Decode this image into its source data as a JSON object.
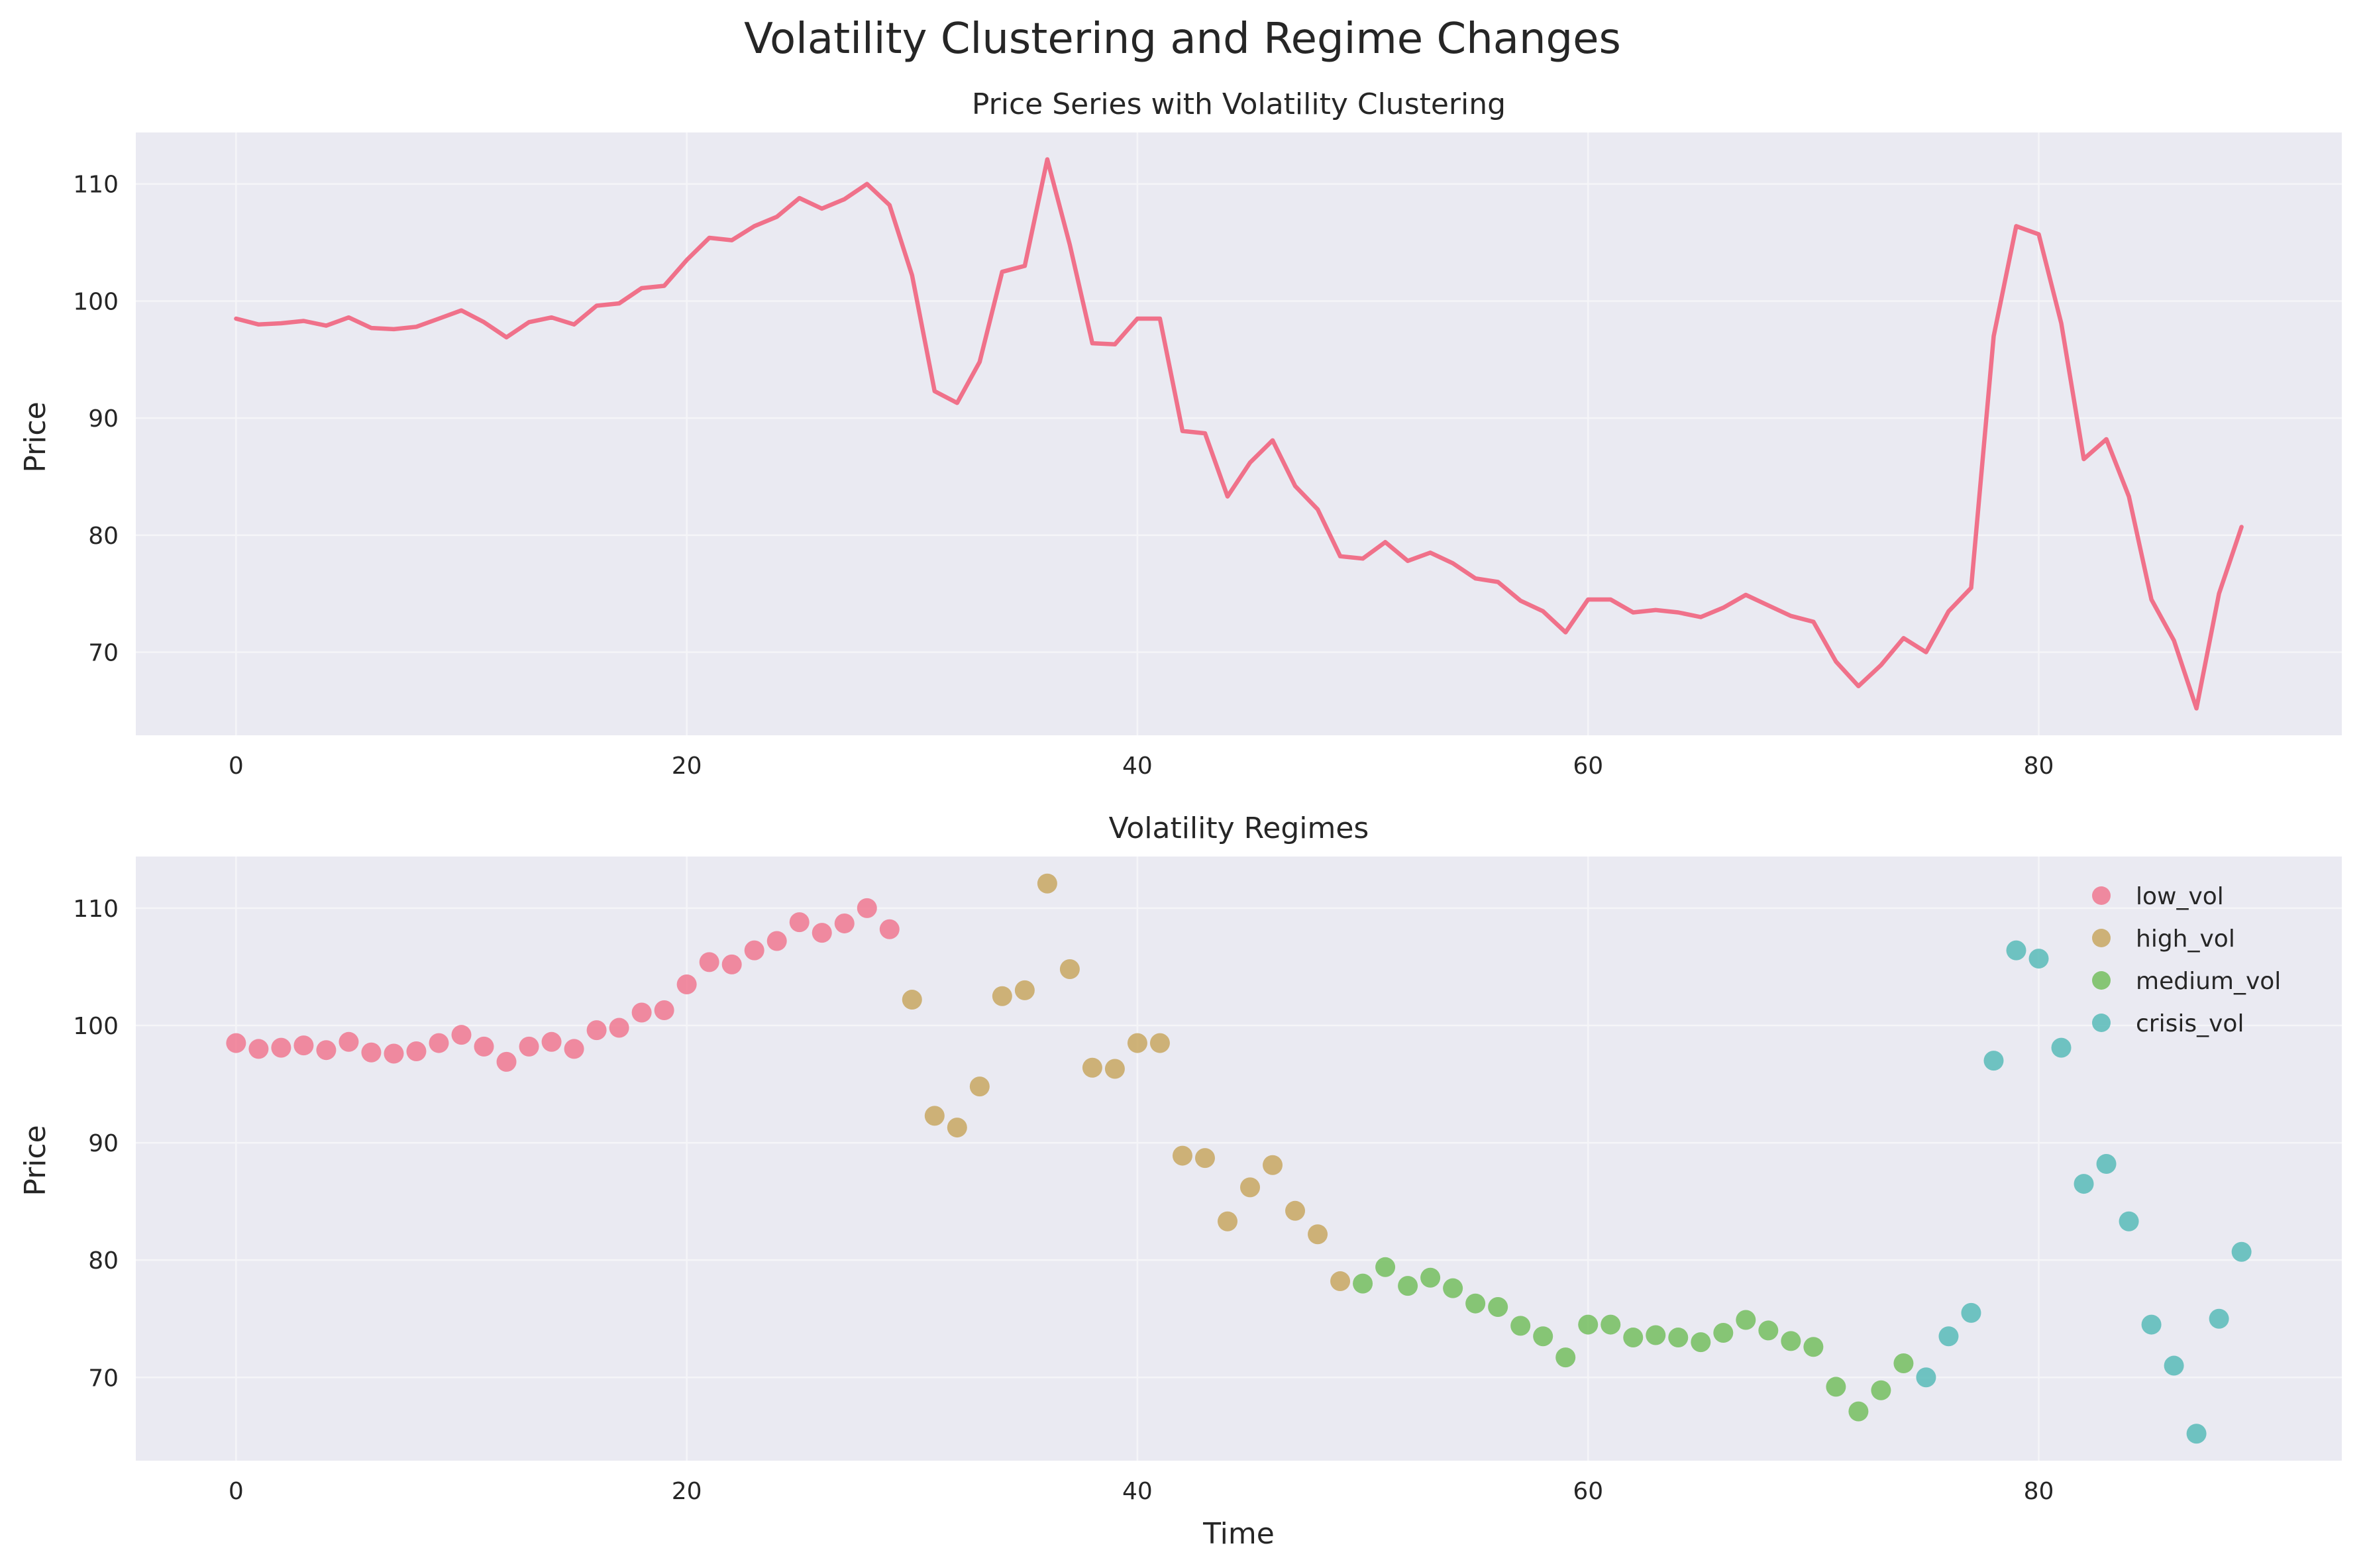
{
  "figure": {
    "suptitle": "Volatility Clustering and Regime Changes"
  },
  "colors": {
    "background": "#eaeaf2",
    "grid": "#f5f5f8",
    "line": "#f0718a",
    "low_vol": "#f0718a",
    "high_vol": "#c6a358",
    "medium_vol": "#6dbb55",
    "crisis_vol": "#4fb8b4"
  },
  "chart_data": [
    {
      "type": "line",
      "title": "Price Series with Volatility Clustering",
      "xlabel": "",
      "ylabel": "Price",
      "xlim": [
        -4.45,
        93.45
      ],
      "ylim": [
        62.9,
        114.4
      ],
      "xticks": [
        0,
        20,
        40,
        60,
        80
      ],
      "yticks": [
        70,
        80,
        90,
        100,
        110
      ],
      "grid": true,
      "series": [
        {
          "x": [
            0,
            1,
            2,
            3,
            4,
            5,
            6,
            7,
            8,
            9,
            10,
            11,
            12,
            13,
            14,
            15,
            16,
            17,
            18,
            19,
            20,
            21,
            22,
            23,
            24,
            25,
            26,
            27,
            28,
            29,
            30,
            31,
            32,
            33,
            34,
            35,
            36,
            37,
            38,
            39,
            40,
            41,
            42,
            43,
            44,
            45,
            46,
            47,
            48,
            49,
            50,
            51,
            52,
            53,
            54,
            55,
            56,
            57,
            58,
            59,
            60,
            61,
            62,
            63,
            64,
            65,
            66,
            67,
            68,
            69,
            70,
            71,
            72,
            73,
            74,
            75,
            76,
            77,
            78,
            79,
            80,
            81,
            82,
            83,
            84,
            85,
            86,
            87,
            88,
            89
          ],
          "y": [
            98.5,
            98.0,
            98.1,
            98.3,
            97.9,
            98.6,
            97.7,
            97.6,
            97.8,
            98.5,
            99.2,
            98.2,
            96.9,
            98.2,
            98.6,
            98.0,
            99.6,
            99.8,
            101.1,
            101.3,
            103.5,
            105.4,
            105.2,
            106.4,
            107.2,
            108.8,
            107.9,
            108.7,
            110.0,
            108.2,
            102.2,
            92.3,
            91.3,
            94.8,
            102.5,
            103.0,
            112.1,
            104.8,
            96.4,
            96.3,
            98.5,
            98.5,
            88.9,
            88.7,
            83.3,
            86.2,
            88.1,
            84.2,
            82.2,
            78.2,
            78.0,
            79.4,
            77.8,
            78.5,
            77.6,
            76.3,
            76.0,
            74.4,
            73.5,
            71.7,
            74.5,
            74.5,
            73.4,
            73.6,
            73.4,
            73.0,
            73.8,
            74.9,
            74.0,
            73.1,
            72.6,
            69.2,
            67.1,
            68.9,
            71.2,
            70.0,
            73.5,
            75.5,
            97.0,
            106.4,
            105.7,
            98.1,
            86.5,
            88.2,
            83.3,
            74.5,
            71.0,
            65.2,
            75.0,
            80.7
          ]
        }
      ]
    },
    {
      "type": "scatter",
      "title": "Volatility Regimes",
      "xlabel": "Time",
      "ylabel": "Price",
      "xlim": [
        -4.45,
        93.45
      ],
      "ylim": [
        62.9,
        114.4
      ],
      "xticks": [
        0,
        20,
        40,
        60,
        80
      ],
      "yticks": [
        70,
        80,
        90,
        100,
        110
      ],
      "grid": true,
      "legend_position": "top-right",
      "series": [
        {
          "name": "low_vol",
          "x": [
            0,
            1,
            2,
            3,
            4,
            5,
            6,
            7,
            8,
            9,
            10,
            11,
            12,
            13,
            14,
            15,
            16,
            17,
            18,
            19,
            20,
            21,
            22,
            23,
            24,
            25,
            26,
            27,
            28,
            29
          ],
          "y": [
            98.5,
            98.0,
            98.1,
            98.3,
            97.9,
            98.6,
            97.7,
            97.6,
            97.8,
            98.5,
            99.2,
            98.2,
            96.9,
            98.2,
            98.6,
            98.0,
            99.6,
            99.8,
            101.1,
            101.3,
            103.5,
            105.4,
            105.2,
            106.4,
            107.2,
            108.8,
            107.9,
            108.7,
            110.0,
            108.2
          ]
        },
        {
          "name": "high_vol",
          "x": [
            30,
            31,
            32,
            33,
            34,
            35,
            36,
            37,
            38,
            39,
            40,
            41,
            42,
            43,
            44,
            45,
            46,
            47,
            48,
            49
          ],
          "y": [
            102.2,
            92.3,
            91.3,
            94.8,
            102.5,
            103.0,
            112.1,
            104.8,
            96.4,
            96.3,
            98.5,
            98.5,
            88.9,
            88.7,
            83.3,
            86.2,
            88.1,
            84.2,
            82.2,
            78.2
          ]
        },
        {
          "name": "medium_vol",
          "x": [
            50,
            51,
            52,
            53,
            54,
            55,
            56,
            57,
            58,
            59,
            60,
            61,
            62,
            63,
            64,
            65,
            66,
            67,
            68,
            69,
            70,
            71,
            72,
            73,
            74
          ],
          "y": [
            78.0,
            79.4,
            77.8,
            78.5,
            77.6,
            76.3,
            76.0,
            74.4,
            73.5,
            71.7,
            74.5,
            74.5,
            73.4,
            73.6,
            73.4,
            73.0,
            73.8,
            74.9,
            74.0,
            73.1,
            72.6,
            69.2,
            67.1,
            68.9,
            71.2
          ]
        },
        {
          "name": "crisis_vol",
          "x": [
            75,
            76,
            77,
            78,
            79,
            80,
            81,
            82,
            83,
            84,
            85,
            86,
            87,
            88,
            89
          ],
          "y": [
            70.0,
            73.5,
            75.5,
            97.0,
            106.4,
            105.7,
            98.1,
            86.5,
            88.2,
            83.3,
            74.5,
            71.0,
            65.2,
            75.0,
            80.7
          ]
        }
      ]
    }
  ]
}
